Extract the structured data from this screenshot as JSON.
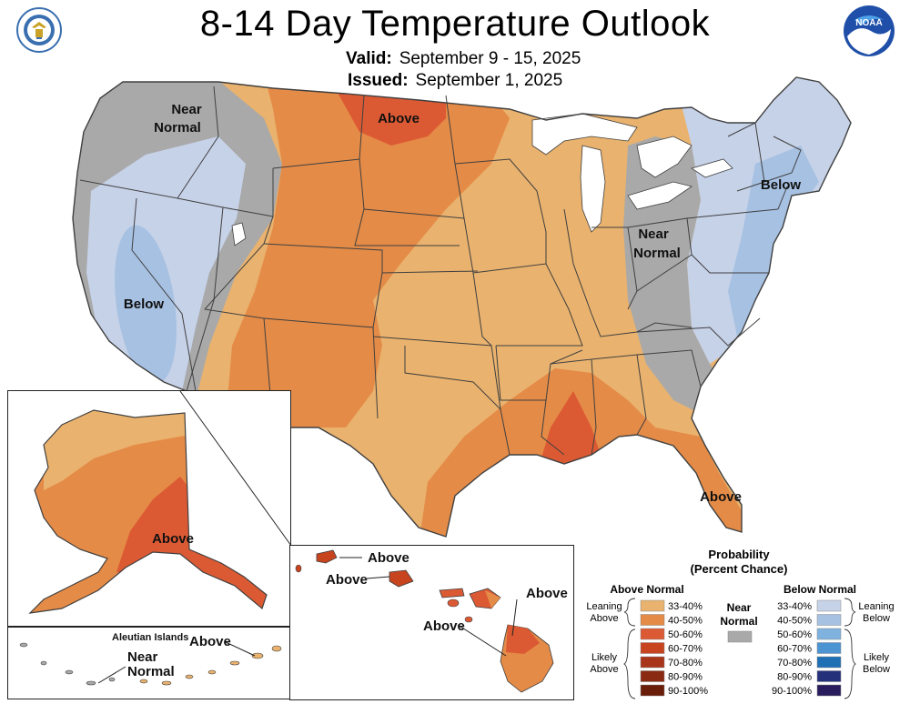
{
  "header": {
    "title": "8-14 Day Temperature Outlook",
    "valid_label": "Valid:",
    "valid_value": "September 9 - 15, 2025",
    "issued_label": "Issued:",
    "issued_value": "September 1, 2025",
    "left_seal": "U.S. Department of Commerce seal",
    "right_logo": "NOAA"
  },
  "map_labels": {
    "conus_near_normal_west": [
      "Near",
      "Normal"
    ],
    "conus_above_north": "Above",
    "conus_below_northeast": "Below",
    "conus_near_normal_east": [
      "Near",
      "Normal"
    ],
    "conus_below_west": "Below",
    "conus_above_florida": "Above",
    "alaska_above": "Above",
    "aleutian_title": "Aleutian Islands",
    "aleutian_near_normal": [
      "Near",
      "Normal"
    ],
    "aleutian_above": "Above",
    "hawaii_above_1": "Above",
    "hawaii_above_2": "Above",
    "hawaii_above_3": "Above",
    "hawaii_above_4": "Above"
  },
  "legend": {
    "title_line1": "Probability",
    "title_line2": "(Percent Chance)",
    "above_header": "Above Normal",
    "below_header": "Below Normal",
    "near_line1": "Near",
    "near_line2": "Normal",
    "leaning_above": [
      "Leaning",
      "Above"
    ],
    "likely_above": [
      "Likely",
      "Above"
    ],
    "leaning_below": [
      "Leaning",
      "Below"
    ],
    "likely_below": [
      "Likely",
      "Below"
    ],
    "above_bins": [
      {
        "label": "33-40%",
        "color": "#e9b26e"
      },
      {
        "label": "40-50%",
        "color": "#e48b47"
      },
      {
        "label": "50-60%",
        "color": "#dc5a33"
      },
      {
        "label": "60-70%",
        "color": "#c8441f"
      },
      {
        "label": "70-80%",
        "color": "#a8341a"
      },
      {
        "label": "80-90%",
        "color": "#8a2a12"
      },
      {
        "label": "90-100%",
        "color": "#6a1d08"
      }
    ],
    "below_bins": [
      {
        "label": "33-40%",
        "color": "#c6d2e8"
      },
      {
        "label": "40-50%",
        "color": "#a7c1e2"
      },
      {
        "label": "50-60%",
        "color": "#7fb2df"
      },
      {
        "label": "60-70%",
        "color": "#4d94d2"
      },
      {
        "label": "70-80%",
        "color": "#1f6fb4"
      },
      {
        "label": "80-90%",
        "color": "#24307a"
      },
      {
        "label": "90-100%",
        "color": "#2a1d5e"
      }
    ],
    "near_color": "#a9a9a9"
  },
  "colors": {
    "lean_above": "#e9b26e",
    "above_40_50": "#e48b47",
    "above_50_60": "#dc5a33",
    "near_normal": "#a9a9a9",
    "lean_below": "#c6d2e8",
    "below_40_50": "#a7c1e2",
    "no_data": "#ffffff",
    "borders": "#404040"
  }
}
